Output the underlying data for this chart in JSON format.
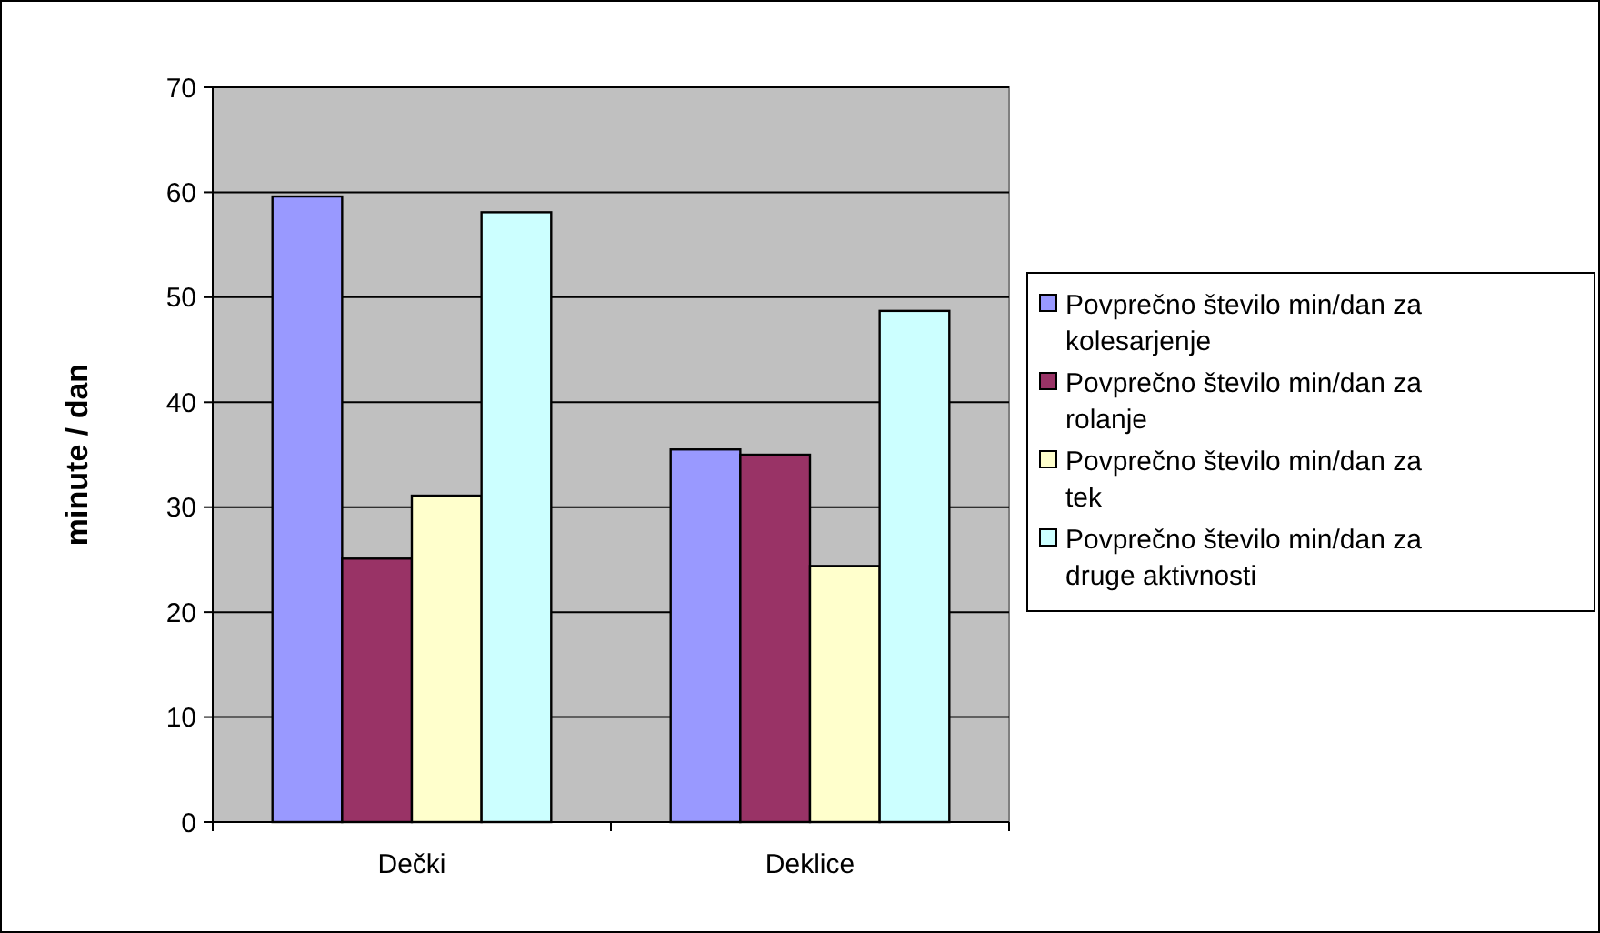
{
  "chart_data": {
    "type": "bar",
    "ylabel": "minute / dan",
    "categories": [
      "Dečki",
      "Deklice"
    ],
    "series": [
      {
        "name": "Povprečno število min/dan za kolesarjenje",
        "color": "#9999ff",
        "values": [
          59.6,
          35.5
        ]
      },
      {
        "name": "Povprečno število min/dan za rolanje",
        "color": "#993366",
        "values": [
          25.1,
          35.0
        ]
      },
      {
        "name": "Povprečno število min/dan za tek",
        "color": "#ffffcc",
        "values": [
          31.1,
          24.4
        ]
      },
      {
        "name": "Povprečno število min/dan za druge aktivnosti",
        "color": "#ccffff",
        "values": [
          58.1,
          48.7
        ]
      }
    ],
    "ylim": [
      0,
      70
    ],
    "yticks": [
      0,
      10,
      20,
      30,
      40,
      50,
      60,
      70
    ],
    "grid": "y",
    "legend": "right"
  }
}
